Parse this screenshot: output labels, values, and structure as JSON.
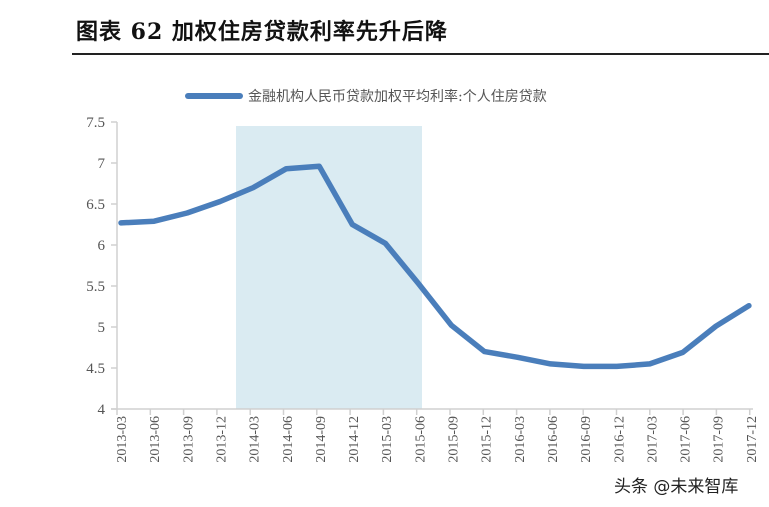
{
  "header": {
    "title": "图表 62  加权住房贷款利率先升后降"
  },
  "watermark": "头条 @未来智库",
  "colors": {
    "line": "#4A7EBB",
    "shade": "#DAEBF2",
    "axis": "#D0D0D0",
    "text": "#555555"
  },
  "chart_data": {
    "type": "line",
    "title": "加权住房贷款利率先升后降",
    "xlabel": "",
    "ylabel": "",
    "ylim": [
      4,
      7.5
    ],
    "yticks": [
      "7.5",
      "7",
      "6.5",
      "6",
      "5.5",
      "5",
      "4.5",
      "4"
    ],
    "grid": false,
    "legend_position": "top",
    "categories": [
      "2013-03",
      "2013-06",
      "2013-09",
      "2013-12",
      "2014-03",
      "2014-06",
      "2014-09",
      "2014-12",
      "2015-03",
      "2015-06",
      "2015-09",
      "2015-12",
      "2016-03",
      "2016-06",
      "2016-09",
      "2016-12",
      "2017-03",
      "2017-06",
      "2017-09",
      "2017-12"
    ],
    "series": [
      {
        "name": "金融机构人民币贷款加权平均利率:个人住房贷款",
        "values": [
          6.27,
          6.29,
          6.39,
          6.53,
          6.7,
          6.93,
          6.96,
          6.25,
          6.02,
          5.53,
          5.02,
          4.7,
          4.63,
          4.55,
          4.52,
          4.52,
          4.55,
          4.69,
          5.01,
          5.26
        ]
      }
    ],
    "annotations": [
      {
        "type": "shaded_region",
        "from": "2013-12/2014-03",
        "to": "2015-06/2015-09",
        "color": "#DAEBF2"
      }
    ]
  }
}
